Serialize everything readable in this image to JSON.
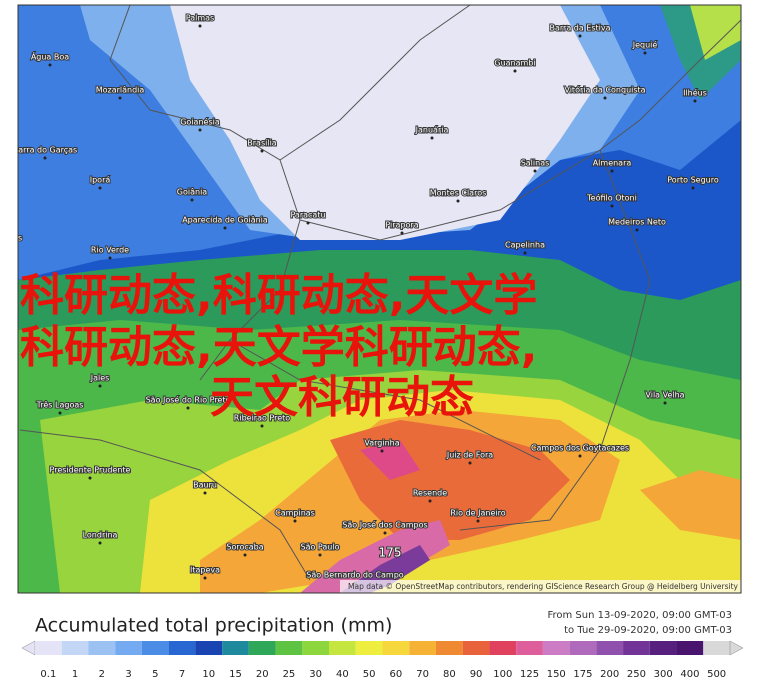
{
  "map": {
    "labels": [
      "Palmas",
      "Barra da Estiva",
      "Água Boa",
      "Guanambi",
      "Jequié",
      "Mozarlândia",
      "Vitória da Conquista",
      "Ilhéus",
      "Goianésia",
      "Brasília",
      "Januária",
      "Barra do Garças",
      "Salinas",
      "Almenara",
      "Iporá",
      "Goiânia",
      "Montes Claros",
      "Porto Seguro",
      "Aparecida de Goiânia",
      "Paracatu",
      "Pirapora",
      "Medeiros Neto",
      "neiros",
      "Rio Verde",
      "Capelinha",
      "Jales",
      "Três Lagoas",
      "São José do Rio Preto",
      "Ribeirão Preto",
      "Varginha",
      "Juiz de Fora",
      "Campos dos Goytacazes",
      "Vila Velha",
      "Presidente Prudente",
      "Bauru",
      "Resende",
      "Campinas",
      "Rio de Janeiro",
      "São José dos Campos",
      "Londrina",
      "Sorocaba",
      "São Paulo",
      "Itapeva",
      "São Bernardo do Campo",
      "Teófilo Otoni"
    ],
    "max_label": "175",
    "attribution": "Map data © OpenStreetMap contributors, rendering GIScience Research Group @ Heidelberg University"
  },
  "overlay": [
    "科研动态,科研动态,天文学",
    "科研动态,天文学科研动态,",
    "天文科研动态"
  ],
  "legend": {
    "title": "Accumulated total precipitation (mm)",
    "from": "From Sun 13-09-2020, 09:00 GMT-03",
    "to": "to Tue 29-09-2020, 09:00 GMT-03",
    "ticks": [
      "0.1",
      "1",
      "2",
      "3",
      "5",
      "7",
      "10",
      "15",
      "20",
      "25",
      "30",
      "40",
      "50",
      "60",
      "70",
      "80",
      "90",
      "100",
      "125",
      "150",
      "175",
      "200",
      "250",
      "300",
      "400",
      "500"
    ]
  }
}
